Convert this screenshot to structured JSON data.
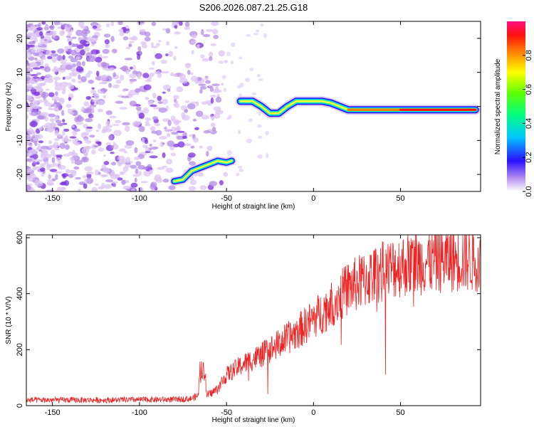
{
  "title": "S206.2026.087.21.25.G18",
  "chart_data": [
    {
      "type": "heatmap",
      "name": "spectrogram",
      "xlabel": "Height of straight line (km)",
      "ylabel": "Frequency (Hz)",
      "xlim": [
        -165,
        96
      ],
      "ylim": [
        -25,
        25
      ],
      "xticks": [
        -150,
        -100,
        -50,
        0,
        50
      ],
      "yticks": [
        -20,
        -10,
        0,
        10,
        20
      ],
      "ridge": {
        "description_points_x": [
          -80,
          -75,
          -70,
          -65,
          -60,
          -55,
          -50,
          -47
        ],
        "description_points_y": [
          -22,
          -21.5,
          -19,
          -18,
          -17,
          -16,
          -16.5,
          -16
        ],
        "main_x": [
          -42,
          -35,
          -30,
          -25,
          -20,
          -15,
          -10,
          -5,
          0,
          5,
          10,
          15,
          20,
          30,
          40,
          50,
          60,
          70,
          80,
          93
        ],
        "main_y": [
          1.5,
          1.5,
          0,
          -2,
          -2,
          0,
          1.5,
          1.5,
          1.5,
          1.5,
          1.0,
          0,
          -1,
          -1,
          -1,
          -1,
          -1,
          -1,
          -1,
          -1
        ]
      },
      "colorbar": {
        "label": "Normalized spectral amplitude",
        "range": [
          0,
          1
        ],
        "ticks": [
          0.0,
          0.2,
          0.4,
          0.6,
          0.8
        ],
        "tick_labels": [
          "0.0",
          "0.2",
          "0.4",
          "0.6",
          "0.8"
        ]
      }
    },
    {
      "type": "line",
      "name": "snr",
      "xlabel": "Height of straight line (km)",
      "ylabel": "SNR (10 * V/V)",
      "xlim": [
        -165,
        96
      ],
      "ylim": [
        0,
        610
      ],
      "xticks": [
        -150,
        -100,
        -50,
        0,
        50
      ],
      "yticks": [
        0,
        200,
        400,
        600
      ],
      "color": "#ee2222",
      "trend_x": [
        -165,
        -120,
        -80,
        -70,
        -65,
        -60,
        -55,
        -50,
        -40,
        -30,
        -20,
        -10,
        0,
        10,
        20,
        30,
        40,
        50,
        60,
        70,
        80,
        96
      ],
      "trend_y": [
        20,
        20,
        22,
        25,
        40,
        40,
        60,
        110,
        150,
        180,
        220,
        260,
        310,
        360,
        420,
        450,
        480,
        500,
        510,
        520,
        525,
        525
      ]
    }
  ],
  "colors": {
    "line": "#ee2222",
    "speckle_light": "#dcc6f2",
    "speckle_mid": "#b38be6",
    "speckle_dark": "#7a2fe0"
  }
}
